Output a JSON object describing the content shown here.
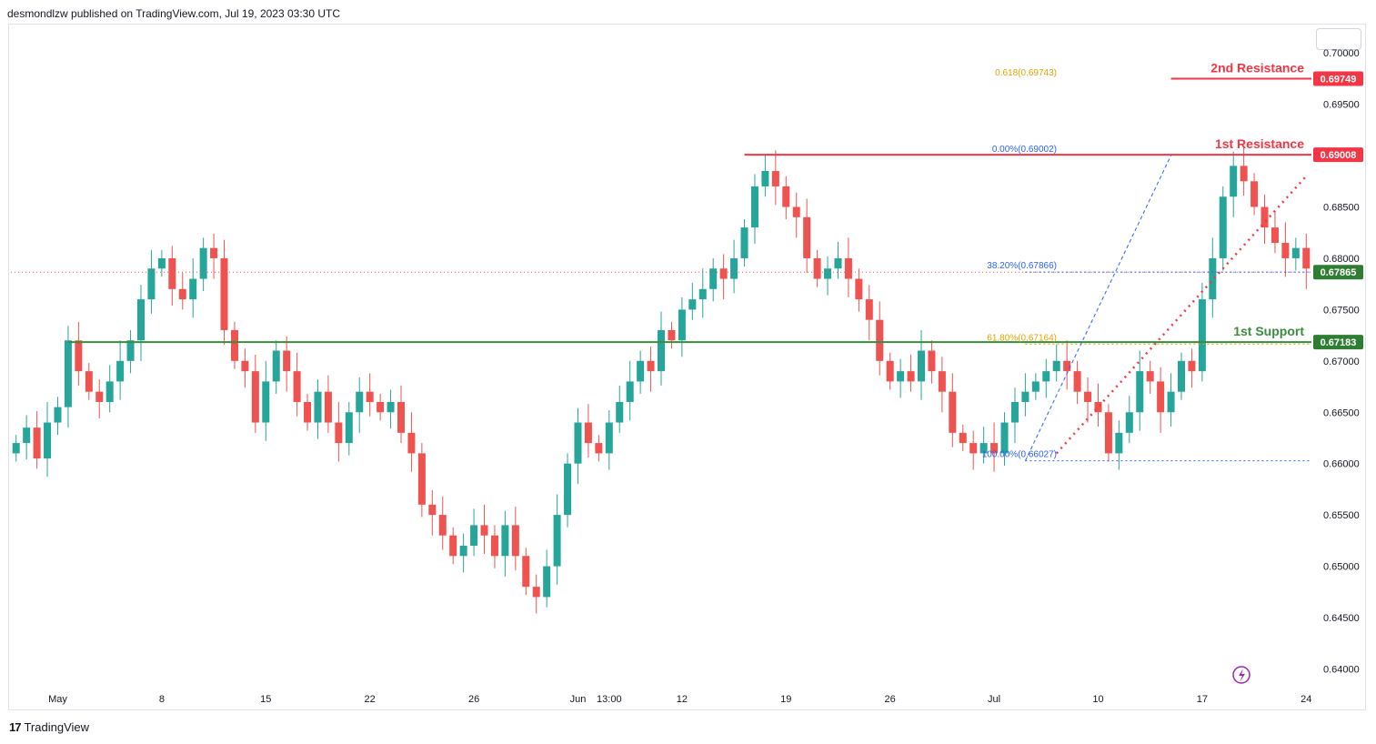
{
  "header": {
    "text": "desmondlzw published on TradingView.com, Jul 19, 2023 03:30 UTC"
  },
  "footer": {
    "logo": "17",
    "brand": "TradingView"
  },
  "colors": {
    "up": "#26a69a",
    "down": "#ef5350",
    "resistance": "#f23645",
    "support": "#388e3c",
    "fib_blue": "#2962ff",
    "fib_orange": "#e6a100",
    "current": "#2e7d32",
    "purple": "#9c27b0"
  },
  "chart_data": {
    "type": "candlestick",
    "y_axis": {
      "min": 0.638,
      "max": 0.7025,
      "ticks": [
        "0.70000",
        "0.69500",
        "0.69000",
        "0.68500",
        "0.68000",
        "0.67500",
        "0.67000",
        "0.66500",
        "0.66000",
        "0.65500",
        "0.65000",
        "0.64500",
        "0.64000"
      ]
    },
    "x_axis": {
      "ticks": [
        {
          "label": "May",
          "bar": 4
        },
        {
          "label": "8",
          "bar": 14
        },
        {
          "label": "15",
          "bar": 24
        },
        {
          "label": "22",
          "bar": 34
        },
        {
          "label": "26",
          "bar": 44
        },
        {
          "label": "Jun",
          "bar": 54
        },
        {
          "label": "13:00",
          "bar": 57
        },
        {
          "label": "12",
          "bar": 64
        },
        {
          "label": "19",
          "bar": 74
        },
        {
          "label": "26",
          "bar": 84
        },
        {
          "label": "Jul",
          "bar": 94
        },
        {
          "label": "10",
          "bar": 104
        },
        {
          "label": "17",
          "bar": 114
        },
        {
          "label": "24",
          "bar": 124
        }
      ],
      "bars_total": 125
    },
    "close_series": [
      0.662,
      0.6635,
      0.6605,
      0.664,
      0.6655,
      0.672,
      0.669,
      0.667,
      0.666,
      0.668,
      0.67,
      0.672,
      0.676,
      0.679,
      0.68,
      0.677,
      0.676,
      0.678,
      0.681,
      0.68,
      0.673,
      0.67,
      0.669,
      0.664,
      0.668,
      0.671,
      0.669,
      0.666,
      0.664,
      0.667,
      0.664,
      0.662,
      0.665,
      0.667,
      0.666,
      0.665,
      0.666,
      0.663,
      0.661,
      0.656,
      0.655,
      0.653,
      0.651,
      0.652,
      0.654,
      0.653,
      0.651,
      0.654,
      0.651,
      0.648,
      0.647,
      0.65,
      0.655,
      0.66,
      0.664,
      0.662,
      0.661,
      0.664,
      0.666,
      0.668,
      0.67,
      0.669,
      0.673,
      0.672,
      0.675,
      0.676,
      0.677,
      0.679,
      0.678,
      0.68,
      0.683,
      0.687,
      0.6885,
      0.687,
      0.685,
      0.684,
      0.68,
      0.678,
      0.679,
      0.68,
      0.678,
      0.676,
      0.674,
      0.67,
      0.668,
      0.669,
      0.668,
      0.671,
      0.669,
      0.667,
      0.663,
      0.662,
      0.661,
      0.662,
      0.661,
      0.664,
      0.666,
      0.667,
      0.668,
      0.669,
      0.67,
      0.669,
      0.667,
      0.666,
      0.665,
      0.661,
      0.663,
      0.665,
      0.669,
      0.668,
      0.665,
      0.667,
      0.67,
      0.669,
      0.676,
      0.68,
      0.686,
      0.689,
      0.6875,
      0.685,
      0.683,
      0.6815,
      0.68,
      0.681,
      0.679
    ],
    "price_labels": [
      {
        "key": "r2",
        "value": "0.69749",
        "price": 0.69749,
        "color": "#f23645"
      },
      {
        "key": "r1",
        "value": "0.69008",
        "price": 0.69008,
        "color": "#f23645"
      },
      {
        "key": "cur",
        "value": "0.67865",
        "price": 0.67865,
        "color": "#2e7d32"
      },
      {
        "key": "s1",
        "value": "0.67183",
        "price": 0.67183,
        "color": "#2e7d32"
      }
    ],
    "levels": {
      "second_resistance": {
        "title": "2nd Resistance",
        "price": 0.69749
      },
      "first_resistance": {
        "title": "1st Resistance",
        "price": 0.69008
      },
      "first_support": {
        "title": "1st Support",
        "price": 0.67183
      }
    },
    "fib_labels": [
      {
        "text": "0.618(0.69743)",
        "price": 0.69743,
        "color": "#e6a100"
      },
      {
        "text": "0.00%(0.69002)",
        "price": 0.69002,
        "color": "#2962ff"
      },
      {
        "text": "38.20%(0.67866)",
        "price": 0.67866,
        "color": "#2962ff"
      },
      {
        "text": "61.80%(0.67164)",
        "price": 0.67164,
        "color": "#e6a100"
      },
      {
        "text": "100.00%(0.66027)",
        "price": 0.66027,
        "color": "#2962ff"
      }
    ]
  }
}
